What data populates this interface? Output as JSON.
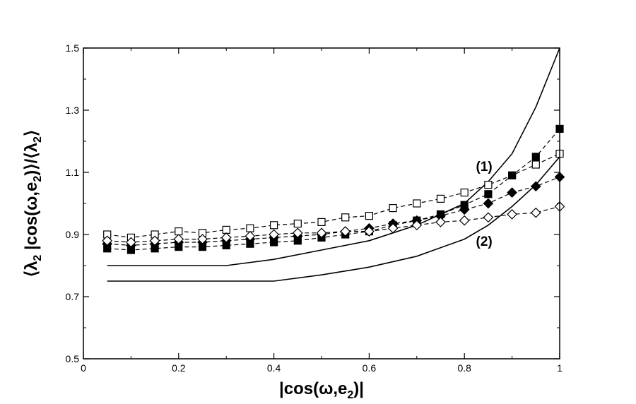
{
  "chart_data": {
    "type": "line",
    "xlabel": "|cos(ω,e2)|",
    "ylabel": "⟨λ2 |cos(ω,e2)⟩/⟨λ2⟩",
    "xlim": [
      0,
      1
    ],
    "ylim": [
      0.5,
      1.5
    ],
    "xticks": [
      "0",
      "0.2",
      "0.4",
      "0.6",
      "0.8",
      "1"
    ],
    "yticks": [
      "0.5",
      "0.7",
      "0.9",
      "1.1",
      "1.3",
      "1.5"
    ],
    "grid": false,
    "x": [
      0.05,
      0.1,
      0.15,
      0.2,
      0.25,
      0.3,
      0.35,
      0.4,
      0.45,
      0.5,
      0.55,
      0.6,
      0.65,
      0.7,
      0.75,
      0.8,
      0.85,
      0.9,
      0.95,
      1.0
    ],
    "series": [
      {
        "marker": "open-square",
        "style": "dashed",
        "values": [
          0.9,
          0.89,
          0.9,
          0.91,
          0.905,
          0.915,
          0.92,
          0.93,
          0.935,
          0.94,
          0.955,
          0.96,
          0.985,
          1.0,
          1.015,
          1.035,
          1.06,
          1.09,
          1.125,
          1.16
        ]
      },
      {
        "marker": "filled-square",
        "style": "dashed",
        "values": [
          0.855,
          0.85,
          0.855,
          0.86,
          0.86,
          0.865,
          0.87,
          0.875,
          0.88,
          0.89,
          0.9,
          0.91,
          0.93,
          0.945,
          0.965,
          0.995,
          1.03,
          1.09,
          1.15,
          1.24
        ]
      },
      {
        "marker": "filled-diamond",
        "style": "dashed",
        "values": [
          0.87,
          0.865,
          0.87,
          0.875,
          0.875,
          0.88,
          0.885,
          0.89,
          0.895,
          0.9,
          0.91,
          0.92,
          0.935,
          0.945,
          0.96,
          0.98,
          1.0,
          1.035,
          1.055,
          1.085
        ]
      },
      {
        "marker": "open-diamond",
        "style": "dashed",
        "values": [
          0.88,
          0.875,
          0.88,
          0.885,
          0.885,
          0.89,
          0.895,
          0.9,
          0.905,
          0.905,
          0.91,
          0.91,
          0.92,
          0.93,
          0.94,
          0.945,
          0.955,
          0.965,
          0.97,
          0.99
        ]
      },
      {
        "name": "(1)",
        "style": "solid",
        "marker": "none",
        "x": [
          0.05,
          0.1,
          0.2,
          0.3,
          0.4,
          0.5,
          0.6,
          0.7,
          0.8,
          0.85,
          0.9,
          0.95,
          1.0
        ],
        "values": [
          0.8,
          0.8,
          0.8,
          0.8,
          0.82,
          0.85,
          0.88,
          0.93,
          1.0,
          1.07,
          1.16,
          1.31,
          1.5
        ]
      },
      {
        "name": "(2)",
        "style": "solid",
        "marker": "none",
        "x": [
          0.05,
          0.1,
          0.2,
          0.3,
          0.4,
          0.5,
          0.6,
          0.7,
          0.8,
          0.85,
          0.9,
          0.95,
          1.0
        ],
        "values": [
          0.75,
          0.75,
          0.75,
          0.75,
          0.75,
          0.77,
          0.795,
          0.83,
          0.885,
          0.93,
          0.99,
          1.06,
          1.15
        ]
      }
    ],
    "annotations": [
      {
        "text": "(1)",
        "x": 0.845,
        "y": 1.12
      },
      {
        "text": "(2)",
        "x": 0.845,
        "y": 0.88
      }
    ]
  }
}
